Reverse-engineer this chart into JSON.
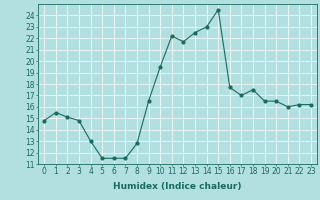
{
  "x": [
    0,
    1,
    2,
    3,
    4,
    5,
    6,
    7,
    8,
    9,
    10,
    11,
    12,
    13,
    14,
    15,
    16,
    17,
    18,
    19,
    20,
    21,
    22,
    23
  ],
  "y": [
    14.8,
    15.5,
    15.1,
    14.8,
    13.0,
    11.5,
    11.5,
    11.5,
    12.8,
    16.5,
    19.5,
    22.2,
    21.7,
    22.5,
    23.0,
    24.5,
    17.7,
    17.0,
    17.5,
    16.5,
    16.5,
    16.0,
    16.2,
    16.2
  ],
  "xlabel": "Humidex (Indice chaleur)",
  "ylabel": "",
  "xlim": [
    -0.5,
    23.5
  ],
  "ylim": [
    11,
    25
  ],
  "yticks": [
    11,
    12,
    13,
    14,
    15,
    16,
    17,
    18,
    19,
    20,
    21,
    22,
    23,
    24
  ],
  "xticks": [
    0,
    1,
    2,
    3,
    4,
    5,
    6,
    7,
    8,
    9,
    10,
    11,
    12,
    13,
    14,
    15,
    16,
    17,
    18,
    19,
    20,
    21,
    22,
    23
  ],
  "line_color": "#1a6b5e",
  "marker_color": "#1a6b5e",
  "bg_color": "#b2e0e0",
  "grid_color": "#ffffff",
  "label_fontsize": 6.5,
  "tick_fontsize": 5.5
}
